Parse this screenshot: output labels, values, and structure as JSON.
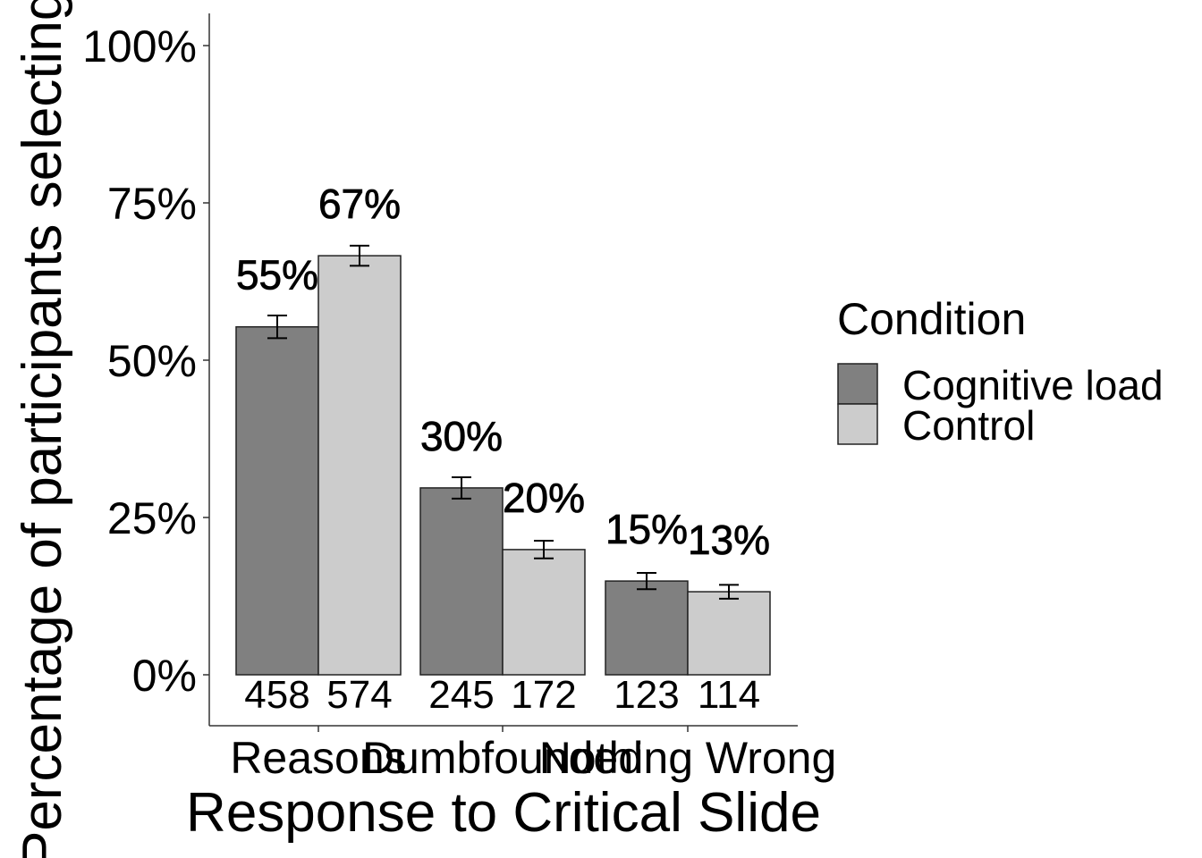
{
  "chart_data": {
    "type": "bar",
    "xlabel": "Response to Critical Slide",
    "ylabel": "Percentage of participants selecting each",
    "ylim": [
      0,
      1
    ],
    "yticks": [
      0,
      0.25,
      0.5,
      0.75,
      1.0
    ],
    "ytick_labels": [
      "0%",
      "25%",
      "50%",
      "75%",
      "100%"
    ],
    "categories": [
      "Reasons",
      "Dumbfounded",
      "Nothing Wrong"
    ],
    "series": [
      {
        "name": "Cognitive load",
        "color": "#808080",
        "values": [
          0.553,
          0.297,
          0.149
        ],
        "error": [
          0.018,
          0.017,
          0.013
        ],
        "pct_labels": [
          "55%",
          "30%",
          "15%"
        ],
        "counts": [
          "458",
          "245",
          "123"
        ]
      },
      {
        "name": "Control",
        "color": "#cccccc",
        "values": [
          0.666,
          0.199,
          0.132
        ],
        "error": [
          0.016,
          0.014,
          0.011
        ],
        "pct_labels": [
          "67%",
          "20%",
          "13%"
        ],
        "counts": [
          "574",
          "172",
          "114"
        ]
      }
    ],
    "legend": {
      "title": "Condition",
      "position": "right"
    },
    "grid": false
  }
}
